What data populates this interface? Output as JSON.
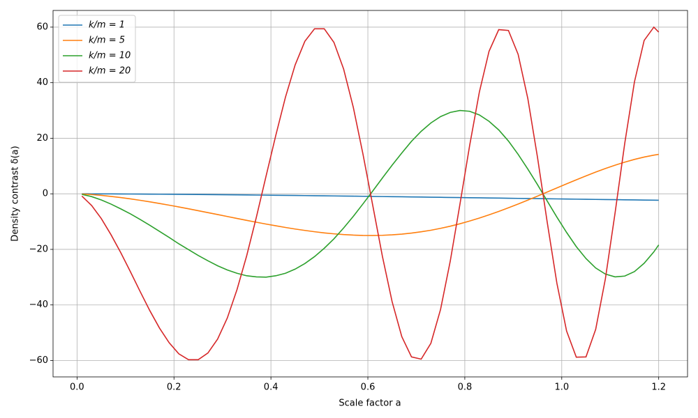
{
  "chart_data": {
    "type": "line",
    "xlabel": "Scale factor a",
    "ylabel": "Density contrast δ(a)",
    "x": [
      0.01,
      0.03,
      0.05,
      0.07,
      0.09,
      0.11,
      0.13,
      0.15,
      0.17,
      0.19,
      0.21,
      0.23,
      0.25,
      0.27,
      0.29,
      0.31,
      0.33,
      0.35,
      0.37,
      0.39,
      0.41,
      0.43,
      0.45,
      0.47,
      0.49,
      0.51,
      0.53,
      0.55,
      0.57,
      0.59,
      0.61,
      0.63,
      0.65,
      0.67,
      0.69,
      0.71,
      0.73,
      0.75,
      0.77,
      0.79,
      0.81,
      0.83,
      0.85,
      0.87,
      0.89,
      0.91,
      0.93,
      0.95,
      0.97,
      0.99,
      1.01,
      1.03,
      1.05,
      1.07,
      1.09,
      1.11,
      1.13,
      1.15,
      1.17,
      1.19,
      1.2
    ],
    "series": [
      {
        "name": "k/m = 1",
        "color": "#1f77b4",
        "values": [
          -0.002,
          -0.01,
          -0.022,
          -0.037,
          -0.054,
          -0.073,
          -0.094,
          -0.116,
          -0.14,
          -0.166,
          -0.192,
          -0.221,
          -0.25,
          -0.281,
          -0.312,
          -0.345,
          -0.378,
          -0.413,
          -0.448,
          -0.485,
          -0.522,
          -0.561,
          -0.6,
          -0.639,
          -0.68,
          -0.721,
          -0.763,
          -0.806,
          -0.849,
          -0.893,
          -0.937,
          -0.982,
          -1.027,
          -1.072,
          -1.119,
          -1.165,
          -1.211,
          -1.258,
          -1.306,
          -1.353,
          -1.401,
          -1.448,
          -1.496,
          -1.544,
          -1.592,
          -1.639,
          -1.687,
          -1.734,
          -1.782,
          -1.831,
          -1.879,
          -1.926,
          -1.972,
          -2.018,
          -2.064,
          -2.109,
          -2.154,
          -2.198,
          -2.242,
          -2.285,
          -2.305
        ]
      },
      {
        "name": "k/m = 5",
        "color": "#ff7f0e",
        "values": [
          -0.05,
          -0.26,
          -0.56,
          -0.93,
          -1.35,
          -1.82,
          -2.33,
          -2.89,
          -3.47,
          -4.09,
          -4.73,
          -5.39,
          -6.07,
          -6.76,
          -7.46,
          -8.16,
          -8.86,
          -9.55,
          -10.23,
          -10.89,
          -11.51,
          -12.11,
          -12.67,
          -13.18,
          -13.65,
          -14.06,
          -14.4,
          -14.67,
          -14.86,
          -14.97,
          -15.0,
          -14.93,
          -14.77,
          -14.5,
          -14.14,
          -13.67,
          -13.11,
          -12.43,
          -11.65,
          -10.78,
          -9.8,
          -8.74,
          -7.57,
          -6.34,
          -5.03,
          -3.68,
          -2.27,
          -0.82,
          0.64,
          2.12,
          3.59,
          5.04,
          6.45,
          7.81,
          9.1,
          10.3,
          11.4,
          12.38,
          13.23,
          13.92,
          14.2
        ]
      },
      {
        "name": "k/m = 10",
        "color": "#2ca02c",
        "values": [
          -0.2,
          -1.0,
          -2.2,
          -3.7,
          -5.4,
          -7.2,
          -9.2,
          -11.3,
          -13.5,
          -15.7,
          -18.0,
          -20.1,
          -22.2,
          -24.1,
          -25.9,
          -27.4,
          -28.6,
          -29.5,
          -29.9,
          -30.0,
          -29.5,
          -28.6,
          -27.1,
          -25.1,
          -22.6,
          -19.6,
          -16.2,
          -12.3,
          -8.1,
          -3.6,
          1.0,
          5.7,
          10.3,
          14.7,
          18.9,
          22.5,
          25.5,
          27.8,
          29.3,
          30.0,
          29.7,
          28.4,
          26.1,
          23.0,
          19.0,
          14.2,
          8.9,
          3.3,
          -2.6,
          -8.4,
          -13.9,
          -19.0,
          -23.3,
          -26.7,
          -28.9,
          -29.9,
          -29.6,
          -28.0,
          -25.0,
          -20.9,
          -18.4
        ]
      },
      {
        "name": "k/m = 20",
        "color": "#d62728",
        "values": [
          -0.8,
          -4.2,
          -8.9,
          -14.7,
          -21.1,
          -28.0,
          -35.1,
          -42.0,
          -48.3,
          -53.6,
          -57.6,
          -59.7,
          -59.7,
          -57.3,
          -52.3,
          -44.7,
          -34.5,
          -22.3,
          -8.4,
          6.4,
          21.0,
          34.8,
          46.4,
          54.9,
          59.4,
          59.4,
          54.5,
          44.9,
          31.1,
          14.2,
          -4.1,
          -22.5,
          -38.8,
          -51.4,
          -58.7,
          -59.5,
          -53.8,
          -41.6,
          -24.2,
          -3.7,
          17.4,
          36.6,
          51.3,
          59.1,
          58.8,
          50.2,
          34.3,
          13.1,
          -10.2,
          -32.2,
          -49.4,
          -58.8,
          -58.7,
          -48.8,
          -30.6,
          -6.9,
          18.2,
          40.3,
          55.2,
          60.0,
          58.2
        ]
      }
    ],
    "xlim": [
      -0.0495,
      1.2595
    ],
    "ylim": [
      -65.9,
      66
    ],
    "xticks": [
      {
        "value": 0,
        "label": "0.0"
      },
      0.2,
      0.4,
      0.6,
      0.8,
      {
        "value": 1,
        "label": "1.0"
      },
      1.2
    ],
    "yticks": [
      {
        "value": -60,
        "label": "−60"
      },
      {
        "value": -40,
        "label": "−40"
      },
      {
        "value": -20,
        "label": "−20"
      },
      0,
      20,
      40,
      60
    ],
    "grid": true,
    "legend": "upper left"
  }
}
